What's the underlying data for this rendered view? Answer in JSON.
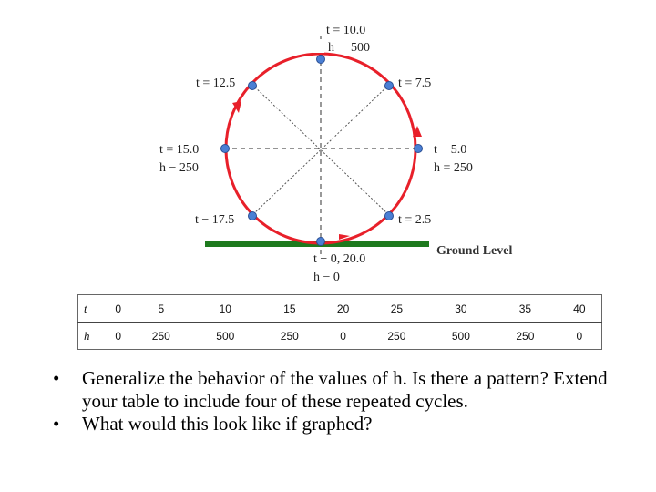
{
  "diagram": {
    "labels": {
      "t_top": "t = 10.0",
      "h_top_letter": "h",
      "h_top_value": "500",
      "t_upper_right": "t = 7.5",
      "t_upper_left": "t = 12.5",
      "t_right": "t − 5.0",
      "h_right": "h = 250",
      "t_left": "t = 15.0",
      "h_left": "h − 250",
      "t_lower_left": "t − 17.5",
      "t_lower_right": "t = 2.5",
      "t_bottom": "t − 0, 20.0",
      "h_bottom": "h − 0",
      "ground": "Ground Level"
    },
    "colors": {
      "wheel": "#e8202a",
      "ground": "#1e7a1e",
      "points": "#4a7fd4",
      "spokes": "#555555"
    }
  },
  "table": {
    "t_label": "t",
    "h_label": "h",
    "t_values": [
      "0",
      "5",
      "10",
      "15",
      "20",
      "25",
      "30",
      "35",
      "40"
    ],
    "h_values": [
      "0",
      "250",
      "500",
      "250",
      "0",
      "250",
      "500",
      "250",
      "0"
    ]
  },
  "bullets": [
    "Generalize the behavior of the values of h.  Is there a pattern? Extend your table to include four of these repeated cycles.",
    "What would this look like if graphed?"
  ],
  "bullet_symbol": "•"
}
